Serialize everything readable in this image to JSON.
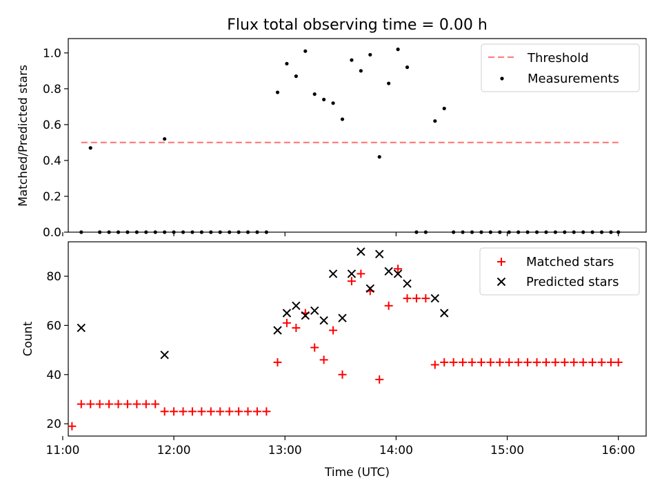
{
  "chart_data": [
    {
      "type": "scatter",
      "title": "Flux total observing time = 0.00 h",
      "xlabel": "",
      "ylabel": "Matched/Predicted stars",
      "ylim": [
        0,
        1.08
      ],
      "yticks": [
        "0.0",
        "0.2",
        "0.4",
        "0.6",
        "0.8",
        "1.0"
      ],
      "xlim": [
        "11:03",
        "16:15"
      ],
      "xticks_shared": true,
      "legend_position": "top-right",
      "grid": false,
      "threshold": {
        "name": "Threshold",
        "value": 0.5,
        "x_start": "11:10",
        "x_end": "16:00",
        "color": "#ff7f7f",
        "style": "dashed"
      },
      "series": [
        {
          "name": "Measurements",
          "color": "#000000",
          "marker": "dot",
          "points": [
            [
              "11:10",
              0.0
            ],
            [
              "11:15",
              0.47
            ],
            [
              "11:20",
              0.0
            ],
            [
              "11:25",
              0.0
            ],
            [
              "11:30",
              0.0
            ],
            [
              "11:35",
              0.0
            ],
            [
              "11:40",
              0.0
            ],
            [
              "11:45",
              0.0
            ],
            [
              "11:50",
              0.0
            ],
            [
              "11:55",
              0.0
            ],
            [
              "11:55",
              0.52
            ],
            [
              "12:00",
              0.0
            ],
            [
              "12:05",
              0.0
            ],
            [
              "12:10",
              0.0
            ],
            [
              "12:15",
              0.0
            ],
            [
              "12:20",
              0.0
            ],
            [
              "12:25",
              0.0
            ],
            [
              "12:30",
              0.0
            ],
            [
              "12:35",
              0.0
            ],
            [
              "12:40",
              0.0
            ],
            [
              "12:45",
              0.0
            ],
            [
              "12:50",
              0.0
            ],
            [
              "12:56",
              0.78
            ],
            [
              "13:01",
              0.94
            ],
            [
              "13:06",
              0.87
            ],
            [
              "13:11",
              1.01
            ],
            [
              "13:16",
              0.77
            ],
            [
              "13:21",
              0.74
            ],
            [
              "13:26",
              0.72
            ],
            [
              "13:31",
              0.63
            ],
            [
              "13:36",
              0.96
            ],
            [
              "13:41",
              0.9
            ],
            [
              "13:46",
              0.99
            ],
            [
              "13:51",
              0.42
            ],
            [
              "13:56",
              0.83
            ],
            [
              "14:01",
              1.02
            ],
            [
              "14:06",
              0.92
            ],
            [
              "14:11",
              0.0
            ],
            [
              "14:16",
              0.0
            ],
            [
              "14:21",
              0.62
            ],
            [
              "14:26",
              0.69
            ],
            [
              "14:31",
              0.0
            ],
            [
              "14:36",
              0.0
            ],
            [
              "14:41",
              0.0
            ],
            [
              "14:46",
              0.0
            ],
            [
              "14:51",
              0.0
            ],
            [
              "14:56",
              0.0
            ],
            [
              "15:01",
              0.0
            ],
            [
              "15:06",
              0.0
            ],
            [
              "15:11",
              0.0
            ],
            [
              "15:16",
              0.0
            ],
            [
              "15:21",
              0.0
            ],
            [
              "15:26",
              0.0
            ],
            [
              "15:31",
              0.0
            ],
            [
              "15:36",
              0.0
            ],
            [
              "15:41",
              0.0
            ],
            [
              "15:46",
              0.0
            ],
            [
              "15:51",
              0.0
            ],
            [
              "15:56",
              0.0
            ],
            [
              "16:00",
              0.0
            ]
          ]
        }
      ]
    },
    {
      "type": "scatter",
      "title": "",
      "xlabel": "Time (UTC)",
      "ylabel": "Count",
      "ylim": [
        15,
        94
      ],
      "yticks": [
        "20",
        "40",
        "60",
        "80"
      ],
      "xlim": [
        "11:03",
        "16:15"
      ],
      "xticks": [
        "11:00",
        "12:00",
        "13:00",
        "14:00",
        "15:00",
        "16:00"
      ],
      "legend_position": "top-right",
      "grid": false,
      "series": [
        {
          "name": "Matched stars",
          "color": "#ff0000",
          "marker": "plus",
          "points": [
            [
              "11:05",
              19
            ],
            [
              "11:10",
              28
            ],
            [
              "11:15",
              28
            ],
            [
              "11:20",
              28
            ],
            [
              "11:25",
              28
            ],
            [
              "11:30",
              28
            ],
            [
              "11:35",
              28
            ],
            [
              "11:40",
              28
            ],
            [
              "11:45",
              28
            ],
            [
              "11:50",
              28
            ],
            [
              "11:55",
              25
            ],
            [
              "12:00",
              25
            ],
            [
              "12:05",
              25
            ],
            [
              "12:10",
              25
            ],
            [
              "12:15",
              25
            ],
            [
              "12:20",
              25
            ],
            [
              "12:25",
              25
            ],
            [
              "12:30",
              25
            ],
            [
              "12:35",
              25
            ],
            [
              "12:40",
              25
            ],
            [
              "12:45",
              25
            ],
            [
              "12:50",
              25
            ],
            [
              "12:56",
              45
            ],
            [
              "13:01",
              61
            ],
            [
              "13:06",
              59
            ],
            [
              "13:11",
              65
            ],
            [
              "13:16",
              51
            ],
            [
              "13:21",
              46
            ],
            [
              "13:26",
              58
            ],
            [
              "13:31",
              40
            ],
            [
              "13:36",
              78
            ],
            [
              "13:41",
              81
            ],
            [
              "13:46",
              74
            ],
            [
              "13:51",
              38
            ],
            [
              "13:56",
              68
            ],
            [
              "14:01",
              83
            ],
            [
              "14:06",
              71
            ],
            [
              "14:11",
              71
            ],
            [
              "14:16",
              71
            ],
            [
              "14:21",
              44
            ],
            [
              "14:26",
              45
            ],
            [
              "14:31",
              45
            ],
            [
              "14:36",
              45
            ],
            [
              "14:41",
              45
            ],
            [
              "14:46",
              45
            ],
            [
              "14:51",
              45
            ],
            [
              "14:56",
              45
            ],
            [
              "15:01",
              45
            ],
            [
              "15:06",
              45
            ],
            [
              "15:11",
              45
            ],
            [
              "15:16",
              45
            ],
            [
              "15:21",
              45
            ],
            [
              "15:26",
              45
            ],
            [
              "15:31",
              45
            ],
            [
              "15:36",
              45
            ],
            [
              "15:41",
              45
            ],
            [
              "15:46",
              45
            ],
            [
              "15:51",
              45
            ],
            [
              "15:56",
              45
            ],
            [
              "16:00",
              45
            ]
          ]
        },
        {
          "name": "Predicted stars",
          "color": "#000000",
          "marker": "x",
          "points": [
            [
              "11:10",
              59
            ],
            [
              "11:55",
              48
            ],
            [
              "12:56",
              58
            ],
            [
              "13:01",
              65
            ],
            [
              "13:06",
              68
            ],
            [
              "13:11",
              64
            ],
            [
              "13:16",
              66
            ],
            [
              "13:21",
              62
            ],
            [
              "13:26",
              81
            ],
            [
              "13:31",
              63
            ],
            [
              "13:36",
              81
            ],
            [
              "13:41",
              90
            ],
            [
              "13:46",
              75
            ],
            [
              "13:51",
              89
            ],
            [
              "13:56",
              82
            ],
            [
              "14:01",
              81
            ],
            [
              "14:06",
              77
            ],
            [
              "14:21",
              71
            ],
            [
              "14:26",
              65
            ]
          ]
        }
      ]
    }
  ]
}
